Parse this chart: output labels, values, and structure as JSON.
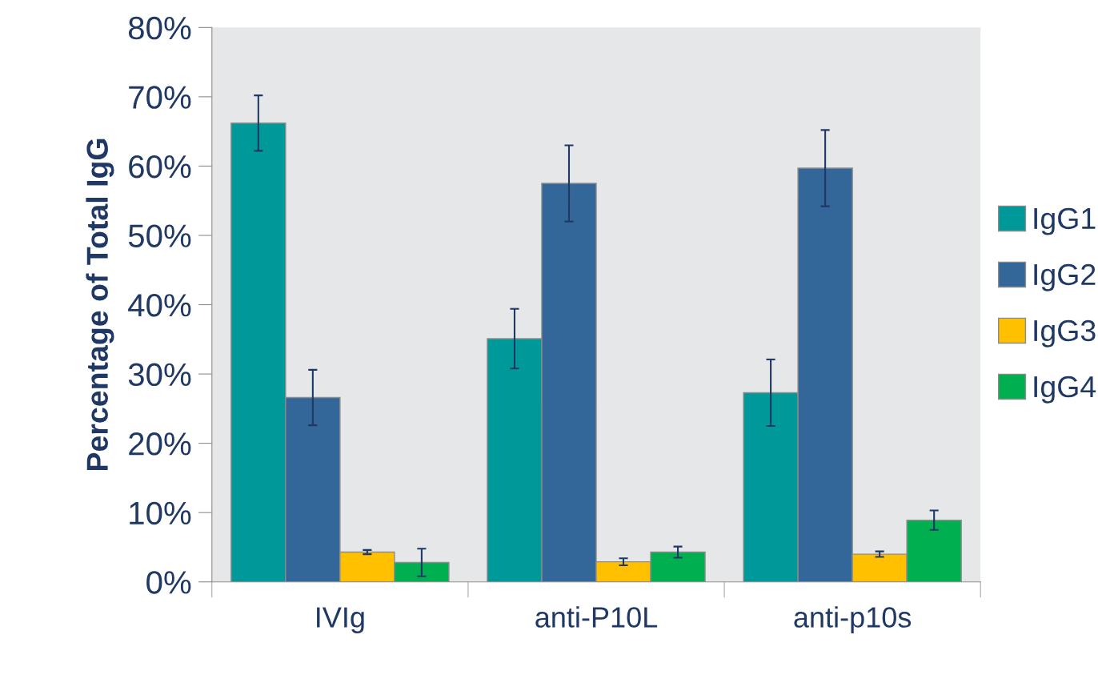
{
  "chart_data": {
    "type": "bar",
    "ylabel": "Percentage of Total IgG",
    "categories": [
      "IVIg",
      "anti-P10L",
      "anti-p10s"
    ],
    "series": [
      {
        "name": "IgG1",
        "color": "#009999",
        "values": [
          66.2,
          35.1,
          27.3
        ],
        "errors": [
          4,
          4.3,
          4.8
        ]
      },
      {
        "name": "IgG2",
        "color": "#336699",
        "values": [
          26.6,
          57.5,
          59.7
        ],
        "errors": [
          4,
          5.5,
          5.5
        ]
      },
      {
        "name": "IgG3",
        "color": "#ffc000",
        "values": [
          4.3,
          2.9,
          4.0
        ],
        "errors": [
          0.3,
          0.5,
          0.4
        ]
      },
      {
        "name": "IgG4",
        "color": "#00b050",
        "values": [
          2.8,
          4.3,
          8.9
        ],
        "errors": [
          2,
          0.8,
          1.4
        ]
      }
    ],
    "ylim": [
      0,
      80
    ],
    "yticks": [
      {
        "value": 0,
        "label": "0%"
      },
      {
        "value": 10,
        "label": "10%"
      },
      {
        "value": 20,
        "label": "20%"
      },
      {
        "value": 30,
        "label": "30%"
      },
      {
        "value": 40,
        "label": "40%"
      },
      {
        "value": 50,
        "label": "50%"
      },
      {
        "value": 60,
        "label": "60%"
      },
      {
        "value": 70,
        "label": "70%"
      },
      {
        "value": 80,
        "label": "80%"
      }
    ],
    "legend": "right",
    "grid": false
  }
}
